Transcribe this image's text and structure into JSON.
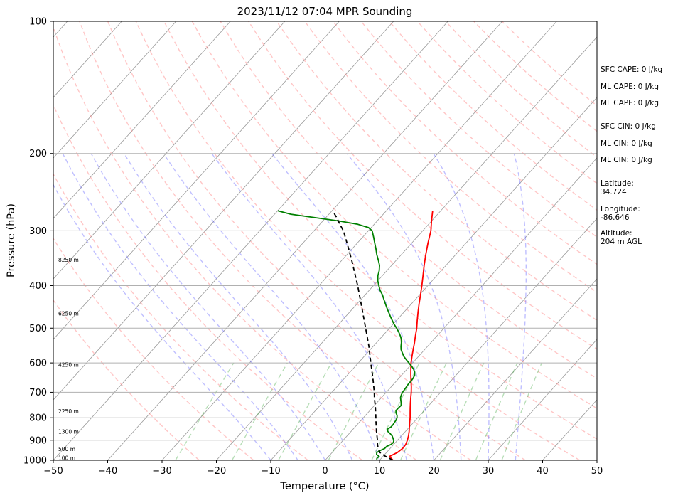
{
  "chart_data": {
    "type": "line",
    "title": "2023/11/12 07:04 MPR Sounding",
    "xlabel": "Temperature (°C)",
    "ylabel": "Pressure (hPa)",
    "xlim": [
      -50,
      50
    ],
    "ylim": [
      1000,
      100
    ],
    "y_scale": "log",
    "skew": "skew-T log-p",
    "x_ticks": [
      "−50",
      "−40",
      "−30",
      "−20",
      "−10",
      "0",
      "10",
      "20",
      "30",
      "40",
      "50"
    ],
    "y_ticks": [
      "100",
      "200",
      "300",
      "400",
      "500",
      "600",
      "700",
      "800",
      "900",
      "1000"
    ],
    "grid": true,
    "series": [
      {
        "role": "temperature",
        "color": "#ff0000",
        "points": [
          [
            1000,
            12.5
          ],
          [
            980,
            11.2
          ],
          [
            960,
            12.0
          ],
          [
            940,
            12.3
          ],
          [
            920,
            12.2
          ],
          [
            900,
            11.8
          ],
          [
            880,
            11.3
          ],
          [
            860,
            10.7
          ],
          [
            840,
            10.0
          ],
          [
            820,
            9.3
          ],
          [
            800,
            8.6
          ],
          [
            780,
            7.8
          ],
          [
            760,
            7.0
          ],
          [
            740,
            6.2
          ],
          [
            720,
            5.4
          ],
          [
            700,
            4.6
          ],
          [
            680,
            3.7
          ],
          [
            660,
            2.7
          ],
          [
            640,
            1.7
          ],
          [
            620,
            0.7
          ],
          [
            600,
            -0.3
          ],
          [
            580,
            -1.2
          ],
          [
            560,
            -2.1
          ],
          [
            540,
            -3.0
          ],
          [
            520,
            -4.0
          ],
          [
            500,
            -5.0
          ],
          [
            480,
            -6.2
          ],
          [
            460,
            -7.4
          ],
          [
            440,
            -8.6
          ],
          [
            420,
            -9.8
          ],
          [
            400,
            -11.1
          ],
          [
            380,
            -12.5
          ],
          [
            360,
            -14.0
          ],
          [
            340,
            -15.5
          ],
          [
            320,
            -17.0
          ],
          [
            300,
            -18.5
          ],
          [
            285,
            -20.0
          ],
          [
            270,
            -21.5
          ]
        ]
      },
      {
        "role": "dewpoint",
        "color": "#008000",
        "points": [
          [
            1000,
            9.5
          ],
          [
            990,
            9.2
          ],
          [
            980,
            9.3
          ],
          [
            970,
            8.5
          ],
          [
            960,
            8.2
          ],
          [
            950,
            8.5
          ],
          [
            940,
            9.0
          ],
          [
            930,
            9.0
          ],
          [
            920,
            9.5
          ],
          [
            910,
            9.6
          ],
          [
            900,
            9.3
          ],
          [
            890,
            8.8
          ],
          [
            880,
            8.3
          ],
          [
            870,
            7.6
          ],
          [
            860,
            6.8
          ],
          [
            850,
            6.3
          ],
          [
            840,
            6.6
          ],
          [
            830,
            6.6
          ],
          [
            820,
            6.5
          ],
          [
            810,
            6.4
          ],
          [
            800,
            6.2
          ],
          [
            790,
            5.8
          ],
          [
            780,
            5.2
          ],
          [
            770,
            4.8
          ],
          [
            760,
            4.8
          ],
          [
            750,
            4.9
          ],
          [
            740,
            4.5
          ],
          [
            730,
            4.0
          ],
          [
            720,
            3.5
          ],
          [
            710,
            3.2
          ],
          [
            700,
            3.0
          ],
          [
            690,
            2.9
          ],
          [
            680,
            2.8
          ],
          [
            670,
            2.7
          ],
          [
            660,
            2.7
          ],
          [
            650,
            2.6
          ],
          [
            640,
            2.4
          ],
          [
            630,
            1.9
          ],
          [
            620,
            1.2
          ],
          [
            610,
            0.3
          ],
          [
            600,
            -0.7
          ],
          [
            590,
            -1.7
          ],
          [
            580,
            -2.7
          ],
          [
            570,
            -3.5
          ],
          [
            560,
            -4.3
          ],
          [
            550,
            -4.9
          ],
          [
            540,
            -5.4
          ],
          [
            530,
            -6.0
          ],
          [
            520,
            -6.8
          ],
          [
            510,
            -7.7
          ],
          [
            500,
            -8.7
          ],
          [
            490,
            -9.8
          ],
          [
            480,
            -10.8
          ],
          [
            470,
            -11.8
          ],
          [
            460,
            -12.8
          ],
          [
            450,
            -13.8
          ],
          [
            440,
            -14.8
          ],
          [
            430,
            -15.8
          ],
          [
            420,
            -16.8
          ],
          [
            410,
            -18.0
          ],
          [
            400,
            -19.0
          ],
          [
            390,
            -20.0
          ],
          [
            380,
            -20.8
          ],
          [
            370,
            -21.4
          ],
          [
            360,
            -22.2
          ],
          [
            350,
            -23.3
          ],
          [
            340,
            -24.5
          ],
          [
            330,
            -25.6
          ],
          [
            320,
            -26.8
          ],
          [
            310,
            -28.0
          ],
          [
            300,
            -29.3
          ],
          [
            295,
            -30.5
          ],
          [
            290,
            -33.0
          ],
          [
            285,
            -37.0
          ],
          [
            280,
            -42.0
          ],
          [
            275,
            -47.0
          ],
          [
            270,
            -50.0
          ]
        ]
      },
      {
        "role": "parcel-profile",
        "color": "#000000",
        "dashed": true,
        "points": [
          [
            1000,
            12.5
          ],
          [
            980,
            10.5
          ],
          [
            960,
            8.8
          ],
          [
            940,
            7.8
          ],
          [
            920,
            7.0
          ],
          [
            900,
            6.3
          ],
          [
            860,
            4.7
          ],
          [
            820,
            3.1
          ],
          [
            800,
            2.3
          ],
          [
            760,
            0.6
          ],
          [
            720,
            -1.3
          ],
          [
            700,
            -2.2
          ],
          [
            650,
            -4.8
          ],
          [
            600,
            -7.7
          ],
          [
            550,
            -10.8
          ],
          [
            500,
            -14.4
          ],
          [
            450,
            -18.4
          ],
          [
            400,
            -22.9
          ],
          [
            350,
            -28.2
          ],
          [
            320,
            -31.9
          ],
          [
            300,
            -34.6
          ],
          [
            290,
            -36.3
          ],
          [
            280,
            -38.0
          ],
          [
            270,
            -39.9
          ]
        ]
      }
    ],
    "background_lines": {
      "dry_adiabats_theta_K": [
        250,
        260,
        270,
        280,
        290,
        300,
        310,
        320,
        330,
        340,
        350,
        360,
        370,
        380,
        390,
        400,
        410,
        420,
        430,
        440,
        450
      ],
      "moist_adiabats_start_C": [
        -10,
        -5,
        0,
        5,
        10,
        15,
        20,
        25,
        30,
        35
      ],
      "mixing_ratio_g_per_kg": [
        0.4,
        1,
        2,
        4,
        7,
        10,
        16,
        24,
        32
      ]
    },
    "height_labels": [
      {
        "text": "100 m",
        "p": 989
      },
      {
        "text": "500 m",
        "p": 943
      },
      {
        "text": "1300 m",
        "p": 862
      },
      {
        "text": "2250 m",
        "p": 775
      },
      {
        "text": "4250 m",
        "p": 607
      },
      {
        "text": "6250 m",
        "p": 464
      },
      {
        "text": "8250 m",
        "p": 350
      }
    ]
  },
  "stats": {
    "sfc_cape": "SFC CAPE: 0 J/kg",
    "ml_cape_1": "ML CAPE: 0 J/kg",
    "ml_cape_2": "ML CAPE: 0 J/kg",
    "sfc_cin": "SFC CIN: 0 J/kg",
    "ml_cin_1": "ML CIN: 0 J/kg",
    "ml_cin_2": "ML CIN: 0 J/kg",
    "latitude_label": "Latitude:",
    "latitude": "34.724",
    "longitude_label": "Longitude:",
    "longitude": "-86.646",
    "altitude_label": "Altitude:",
    "altitude": "204 m AGL"
  }
}
